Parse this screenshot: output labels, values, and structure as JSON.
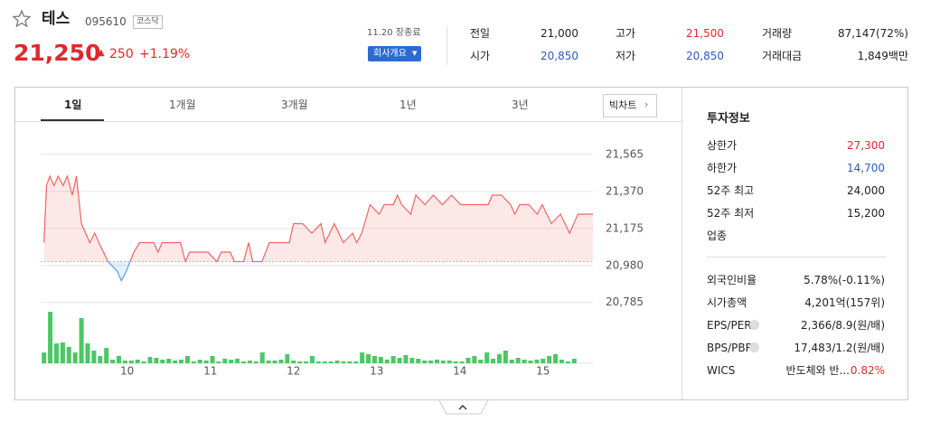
{
  "header": {
    "name": "테스",
    "code": "095610",
    "market": "코스닥",
    "price": "21,250",
    "change": "250",
    "change_rate": "+1.19%",
    "status": "11.20 장종료",
    "overview_button": "회사개요"
  },
  "summary": {
    "rows": [
      [
        {
          "label": "전일",
          "value": "21,000"
        },
        {
          "label": "고가",
          "value": "21,500"
        },
        {
          "label": "거래량",
          "value": "87,147(72%)"
        }
      ],
      [
        {
          "label": "시가",
          "value": "20,850"
        },
        {
          "label": "저가",
          "value": "20,850"
        },
        {
          "label": "거래대금",
          "value": "1,849백만"
        }
      ]
    ]
  },
  "tabs": [
    "1일",
    "1개월",
    "3개월",
    "1년",
    "3년"
  ],
  "big_chart": "빅차트",
  "chart": {
    "type": "line",
    "color": "#f26464",
    "below_color": "#5b9bf0",
    "x": [
      9.0,
      9.03,
      9.07,
      9.12,
      9.17,
      9.23,
      9.28,
      9.34,
      9.39,
      9.45,
      9.5,
      9.55,
      9.61,
      9.66,
      9.77,
      9.88,
      9.93,
      9.99,
      10.08,
      10.15,
      10.21,
      10.32,
      10.37,
      10.42,
      10.53,
      10.64,
      10.7,
      10.75,
      10.8,
      10.91,
      10.97,
      11.08,
      11.13,
      11.24,
      11.29,
      11.4,
      11.46,
      11.51,
      11.62,
      11.71,
      11.95,
      12.0,
      12.11,
      12.22,
      12.33,
      12.38,
      12.49,
      12.6,
      12.71,
      12.76,
      12.82,
      12.92,
      13.03,
      13.09,
      13.2,
      13.25,
      13.3,
      13.41,
      13.47,
      13.58,
      13.68,
      13.79,
      13.9,
      14.01,
      14.34,
      14.39,
      14.5,
      14.61,
      14.66,
      14.72,
      14.83,
      14.93,
      14.99,
      15.1,
      15.21,
      15.32,
      15.42,
      15.6
    ],
    "values": [
      21100,
      21400,
      21450,
      21400,
      21450,
      21400,
      21450,
      21350,
      21450,
      21200,
      21150,
      21100,
      21150,
      21100,
      21000,
      20950,
      20900,
      20950,
      21050,
      21100,
      21100,
      21100,
      21050,
      21100,
      21100,
      21100,
      21000,
      21050,
      21050,
      21050,
      21050,
      21000,
      21050,
      21050,
      21000,
      21000,
      21100,
      21000,
      21000,
      21100,
      21100,
      21200,
      21200,
      21150,
      21200,
      21100,
      21200,
      21100,
      21150,
      21100,
      21150,
      21300,
      21250,
      21300,
      21300,
      21350,
      21300,
      21250,
      21350,
      21300,
      21350,
      21300,
      21350,
      21300,
      21300,
      21350,
      21350,
      21300,
      21250,
      21300,
      21300,
      21250,
      21300,
      21200,
      21250,
      21150,
      21250,
      21250
    ],
    "xlim": [
      8.96,
      15.6
    ],
    "xticks": [
      10,
      11,
      12,
      13,
      14,
      15
    ],
    "ylim": [
      20760,
      21640
    ],
    "yticks": [
      {
        "value": 21565,
        "label": "21,565"
      },
      {
        "value": 21370,
        "label": "21,370"
      },
      {
        "value": 21175,
        "label": "21,175"
      },
      {
        "value": 20980,
        "label": "20,980"
      },
      {
        "value": 20785,
        "label": "20,785"
      }
    ],
    "volume": {
      "color": "#4cc764",
      "ylim": [
        0,
        60
      ],
      "x": [
        9,
        9.075,
        9.15,
        9.225,
        9.3,
        9.375,
        9.45,
        9.525,
        9.6,
        9.675,
        9.75,
        9.825,
        9.9,
        9.975,
        10.05,
        10.125,
        10.2,
        10.275,
        10.35,
        10.425,
        10.5,
        10.575,
        10.65,
        10.725,
        10.8,
        10.875,
        10.95,
        11.025,
        11.1,
        11.175,
        11.25,
        11.325,
        11.4,
        11.475,
        11.55,
        11.625,
        11.7,
        11.775,
        11.85,
        11.925,
        12,
        12.075,
        12.15,
        12.225,
        12.3,
        12.375,
        12.45,
        12.525,
        12.6,
        12.675,
        12.75,
        12.825,
        12.9,
        12.975,
        13.05,
        13.125,
        13.2,
        13.275,
        13.35,
        13.425,
        13.5,
        13.575,
        13.65,
        13.725,
        13.8,
        13.875,
        13.95,
        14.025,
        14.1,
        14.175,
        14.25,
        14.325,
        14.4,
        14.475,
        14.55,
        14.625,
        14.7,
        14.775,
        14.85,
        14.925,
        15,
        15.075,
        15.15,
        15.225,
        15.3,
        15.375
      ],
      "values": [
        12,
        57,
        22,
        23,
        18,
        12,
        50,
        22,
        14,
        8,
        17,
        4,
        8,
        3,
        3,
        4,
        2,
        7,
        6,
        4,
        5,
        3,
        4,
        8,
        2,
        4,
        3,
        8,
        2,
        5,
        4,
        5,
        2,
        3,
        2,
        12,
        3,
        3,
        4,
        10,
        3,
        2,
        2,
        8,
        2,
        2,
        2,
        3,
        2,
        2,
        2,
        12,
        10,
        8,
        7,
        4,
        8,
        6,
        9,
        6,
        5,
        3,
        3,
        4,
        3,
        3,
        2,
        2,
        6,
        8,
        4,
        12,
        5,
        10,
        14,
        4,
        6,
        4,
        3,
        4,
        5,
        8,
        10,
        4,
        2,
        5
      ]
    }
  },
  "invest": {
    "title": "투자정보",
    "limits": [
      {
        "label": "상한가",
        "value": "27,300"
      },
      {
        "label": "하한가",
        "value": "14,700"
      },
      {
        "label": "52주 최고",
        "value": "24,000"
      },
      {
        "label": "52주 최저",
        "value": "15,200"
      },
      {
        "label": "업종"
      }
    ],
    "metrics": [
      {
        "label": "외국인비율",
        "value": "5.78%(-0.11%)"
      },
      {
        "label": "시가총액",
        "value": "4,201억(157위)"
      },
      {
        "label": "EPS/PER",
        "value": "2,366/8.9(원/배)"
      },
      {
        "label": "BPS/PBR",
        "value": "17,483/1.2(원/배)"
      },
      {
        "label": "WICS",
        "value": "반도체와 반...",
        "change": "0.82%"
      }
    ]
  }
}
